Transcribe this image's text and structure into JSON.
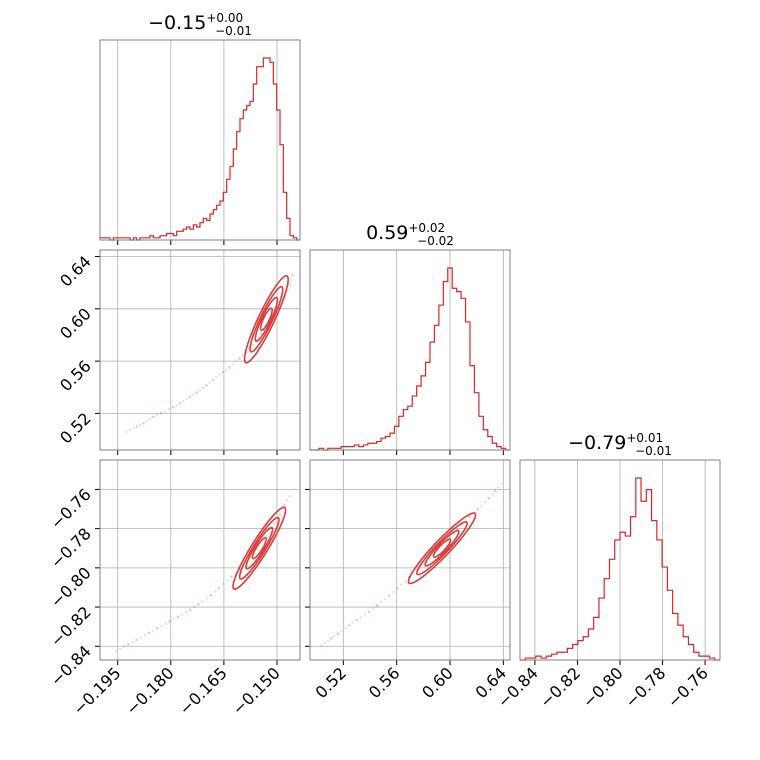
{
  "chart_data": [
    {
      "type": "histogram",
      "panel": "p00",
      "title_value": "−0.15",
      "title_upper": "+0.00",
      "title_lower": "−0.01",
      "color": "#d62728",
      "xlim": [
        -0.2,
        -0.1435
      ],
      "bins": [
        -0.2,
        -0.1435
      ],
      "counts": [
        1,
        1,
        1,
        0,
        1,
        1,
        1,
        1,
        1,
        0,
        1,
        0,
        1,
        1,
        1,
        2,
        1,
        1,
        2,
        2,
        3,
        3,
        2,
        4,
        4,
        5,
        6,
        5,
        7,
        6,
        8,
        10,
        9,
        12,
        14,
        16,
        18,
        22,
        28,
        34,
        42,
        50,
        56,
        60,
        62,
        64,
        72,
        80,
        80,
        84,
        84,
        82,
        72,
        60,
        44,
        22,
        10,
        2,
        1,
        0
      ],
      "xticks": [
        -0.195,
        -0.18,
        -0.165,
        -0.15
      ],
      "xtick_labels": [
        "−0.195",
        "−0.180",
        "−0.165",
        "−0.150"
      ],
      "show_xticklabels": false
    },
    {
      "type": "histogram",
      "panel": "p11",
      "title_value": "0.59",
      "title_upper": "+0.02",
      "title_lower": "−0.02",
      "color": "#d62728",
      "xlim": [
        0.495,
        0.645
      ],
      "counts": [
        0,
        0,
        1,
        0,
        1,
        1,
        1,
        2,
        2,
        2,
        3,
        2,
        3,
        4,
        4,
        5,
        7,
        8,
        10,
        14,
        20,
        24,
        26,
        32,
        38,
        44,
        52,
        64,
        74,
        86,
        100,
        108,
        96,
        94,
        90,
        76,
        50,
        34,
        20,
        12,
        8,
        4,
        2,
        1,
        0
      ],
      "xticks": [
        0.52,
        0.56,
        0.6,
        0.64
      ],
      "xtick_labels": [
        "0.52",
        "0.56",
        "0.60",
        "0.64"
      ],
      "show_xticklabels": false
    },
    {
      "type": "histogram",
      "panel": "p22",
      "title_value": "−0.79",
      "title_upper": "+0.01",
      "title_lower": "−0.01",
      "color": "#d62728",
      "xlim": [
        -0.847,
        -0.753
      ],
      "counts": [
        0,
        1,
        1,
        2,
        1,
        2,
        3,
        4,
        4,
        6,
        8,
        10,
        12,
        16,
        22,
        32,
        42,
        52,
        62,
        66,
        64,
        74,
        94,
        82,
        88,
        72,
        62,
        48,
        36,
        24,
        18,
        12,
        8,
        4,
        2,
        2,
        1,
        0
      ],
      "xticks": [
        -0.84,
        -0.82,
        -0.8,
        -0.78,
        -0.76
      ],
      "xtick_labels": [
        "−0.84",
        "−0.82",
        "−0.80",
        "−0.78",
        "−0.76"
      ],
      "show_xticklabels": true
    },
    {
      "type": "scatter",
      "panel": "p10",
      "color": "#d62728",
      "xlim": [
        -0.2,
        -0.1435
      ],
      "ylim": [
        0.492,
        0.645
      ],
      "x_points": [
        -0.192,
        -0.188,
        -0.184,
        -0.179,
        -0.175,
        -0.171,
        -0.167,
        -0.163,
        -0.159,
        -0.155,
        -0.152,
        -0.149,
        -0.147,
        -0.145
      ],
      "y_points": [
        0.507,
        0.512,
        0.519,
        0.525,
        0.532,
        0.539,
        0.548,
        0.556,
        0.566,
        0.578,
        0.59,
        0.603,
        0.614,
        0.63
      ],
      "contour_center": [
        -0.153,
        0.592
      ],
      "yticks": [
        0.52,
        0.56,
        0.6,
        0.64
      ],
      "ytick_labels": [
        "0.52",
        "0.56",
        "0.60",
        "0.64"
      ]
    },
    {
      "type": "scatter",
      "panel": "p20",
      "color": "#d62728",
      "xlim": [
        -0.2,
        -0.1435
      ],
      "ylim": [
        -0.847,
        -0.745
      ],
      "x_points": [
        -0.195,
        -0.19,
        -0.185,
        -0.18,
        -0.175,
        -0.17,
        -0.165,
        -0.16,
        -0.156,
        -0.152,
        -0.149,
        -0.146
      ],
      "y_points": [
        -0.842,
        -0.837,
        -0.832,
        -0.827,
        -0.822,
        -0.816,
        -0.808,
        -0.8,
        -0.791,
        -0.782,
        -0.772,
        -0.762
      ],
      "contour_center": [
        -0.155,
        -0.79
      ],
      "xticks": [
        -0.195,
        -0.18,
        -0.165,
        -0.15
      ],
      "xtick_labels": [
        "−0.195",
        "−0.180",
        "−0.165",
        "−0.150"
      ],
      "yticks": [
        -0.84,
        -0.82,
        -0.8,
        -0.78,
        -0.76
      ],
      "ytick_labels": [
        "−0.84",
        "−0.82",
        "−0.80",
        "−0.78",
        "−0.76"
      ]
    },
    {
      "type": "scatter",
      "panel": "p21",
      "color": "#d62728",
      "xlim": [
        0.495,
        0.645
      ],
      "ylim": [
        -0.847,
        -0.745
      ],
      "x_points": [
        0.505,
        0.515,
        0.527,
        0.54,
        0.553,
        0.566,
        0.579,
        0.592,
        0.605,
        0.618,
        0.63,
        0.64
      ],
      "y_points": [
        -0.839,
        -0.834,
        -0.828,
        -0.822,
        -0.815,
        -0.807,
        -0.799,
        -0.79,
        -0.781,
        -0.772,
        -0.764,
        -0.756
      ],
      "contour_center": [
        0.594,
        -0.79
      ],
      "xticks": [
        0.52,
        0.56,
        0.6,
        0.64
      ],
      "xtick_labels": [
        "0.52",
        "0.56",
        "0.60",
        "0.64"
      ]
    }
  ]
}
